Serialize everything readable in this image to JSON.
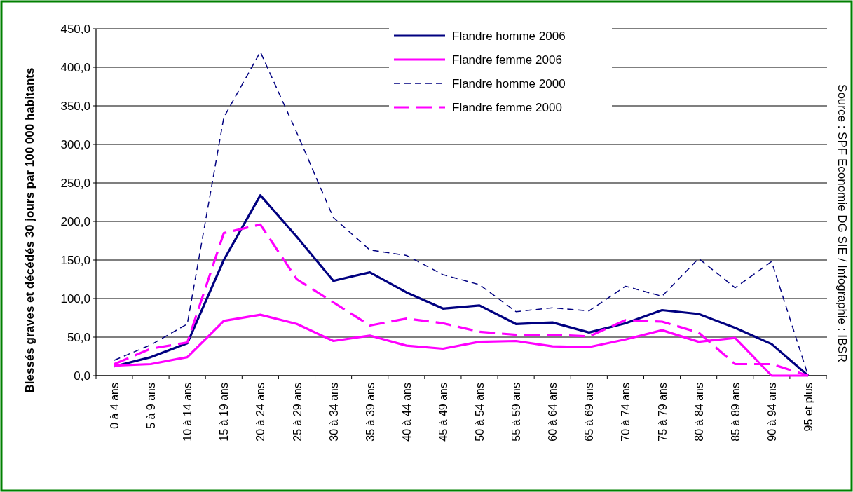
{
  "chart_data": {
    "type": "line",
    "ylabel": "Blessés graves et décédés 30 jours par 100 000 habitants",
    "annotations": [
      "Source : SPF Economie DG SIE / Infographie : IBSR"
    ],
    "categories": [
      "0 à 4 ans",
      "5 à 9 ans",
      "10 à 14 ans",
      "15 à 19 ans",
      "20 à 24 ans",
      "25 à 29 ans",
      "30 à 34 ans",
      "35 à 39 ans",
      "40 à 44 ans",
      "45 à 49 ans",
      "50 à 54 ans",
      "55 à 59 ans",
      "60 à 64 ans",
      "65 à 69 ans",
      "70 à 74 ans",
      "75 à 79 ans",
      "80 à 84 ans",
      "85 à 89 ans",
      "90 à 94 ans",
      "95 et plus"
    ],
    "series": [
      {
        "name": "Flandre homme 2006",
        "color": "#000080",
        "line_style": "solid",
        "values": [
          12,
          24,
          42,
          150,
          234,
          180,
          123,
          134,
          108,
          87,
          91,
          67,
          69,
          56,
          68,
          85,
          80,
          62,
          41,
          0
        ]
      },
      {
        "name": "Flandre femme 2006",
        "color": "#ff00ff",
        "line_style": "solid",
        "values": [
          13,
          15,
          24,
          71,
          79,
          67,
          45,
          52,
          39,
          35,
          44,
          45,
          38,
          37,
          47,
          59,
          44,
          49,
          0,
          0
        ]
      },
      {
        "name": "Flandre homme 2000",
        "color": "#000080",
        "line_style": "dashed",
        "values": [
          20,
          40,
          67,
          335,
          420,
          315,
          205,
          163,
          156,
          131,
          118,
          83,
          88,
          84,
          116,
          103,
          152,
          114,
          148,
          0
        ]
      },
      {
        "name": "Flandre femme 2000",
        "color": "#ff00ff",
        "line_style": "dashed",
        "values": [
          15,
          35,
          43,
          185,
          196,
          125,
          95,
          65,
          74,
          68,
          57,
          53,
          53,
          51,
          72,
          70,
          56,
          15,
          15,
          0
        ]
      }
    ],
    "ylim": [
      0,
      450
    ],
    "yticks": [
      {
        "value": 0,
        "label": "0,0"
      },
      {
        "value": 50,
        "label": "50,0"
      },
      {
        "value": 100,
        "label": "100,0"
      },
      {
        "value": 150,
        "label": "150,0"
      },
      {
        "value": 200,
        "label": "200,0"
      },
      {
        "value": 250,
        "label": "250,0"
      },
      {
        "value": 300,
        "label": "300,0"
      },
      {
        "value": 350,
        "label": "350,0"
      },
      {
        "value": 400,
        "label": "400,0"
      },
      {
        "value": 450,
        "label": "450,0"
      }
    ],
    "grid": "y",
    "legend": "top",
    "marker": "none"
  }
}
